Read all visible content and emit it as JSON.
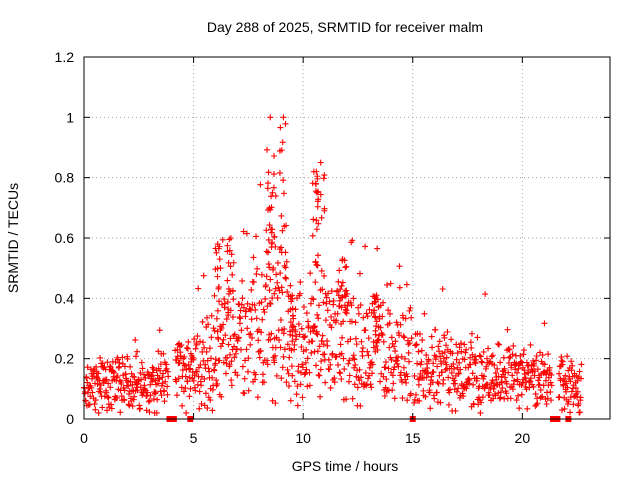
{
  "chart_data": {
    "type": "scatter",
    "title": "Day 288 of 2025, SRMTID for receiver malm",
    "xlabel": "GPS time / hours",
    "ylabel": "SRMTID / TECUs",
    "xlim": [
      0,
      24
    ],
    "ylim": [
      0,
      1.2
    ],
    "x_ticks": [
      0,
      5,
      10,
      15,
      20
    ],
    "x_tick_labels": [
      "0",
      "5",
      "10",
      "15",
      "20"
    ],
    "y_ticks": [
      0,
      0.2,
      0.4,
      0.6,
      0.8,
      1.0,
      1.2
    ],
    "y_tick_labels": [
      "0",
      "0.2",
      "0.4",
      "0.6",
      "0.8",
      "1",
      "1.2"
    ],
    "grid": true,
    "marker": "+",
    "series_color": "#ff0000",
    "gap_color": "#ff0000",
    "envelope": {
      "x": [
        0,
        1,
        2,
        3,
        4,
        5,
        6,
        7,
        8,
        8.5,
        9,
        9.5,
        10,
        10.5,
        11,
        11.5,
        12,
        13,
        14,
        15,
        16,
        17,
        18,
        19,
        20,
        21,
        22,
        22.7
      ],
      "y": [
        0.09,
        0.12,
        0.11,
        0.11,
        0.14,
        0.17,
        0.22,
        0.26,
        0.29,
        0.35,
        0.32,
        0.28,
        0.26,
        0.27,
        0.27,
        0.25,
        0.27,
        0.26,
        0.23,
        0.19,
        0.16,
        0.17,
        0.14,
        0.13,
        0.14,
        0.12,
        0.11,
        0.1
      ]
    },
    "peaks": [
      {
        "x": 8.5,
        "y": 1.0
      },
      {
        "x": 9.1,
        "y": 1.0
      },
      {
        "x": 8.6,
        "y": 0.75
      },
      {
        "x": 10.8,
        "y": 0.85
      },
      {
        "x": 10.6,
        "y": 0.82
      },
      {
        "x": 6.7,
        "y": 0.6
      },
      {
        "x": 6.1,
        "y": 0.58
      },
      {
        "x": 11.8,
        "y": 0.53
      },
      {
        "x": 9.5,
        "y": 0.41
      },
      {
        "x": 13.3,
        "y": 0.4
      }
    ],
    "data_gaps_x": [
      3.9,
      4.1,
      4.85,
      15.0,
      21.4,
      21.5,
      21.6,
      22.1
    ]
  }
}
